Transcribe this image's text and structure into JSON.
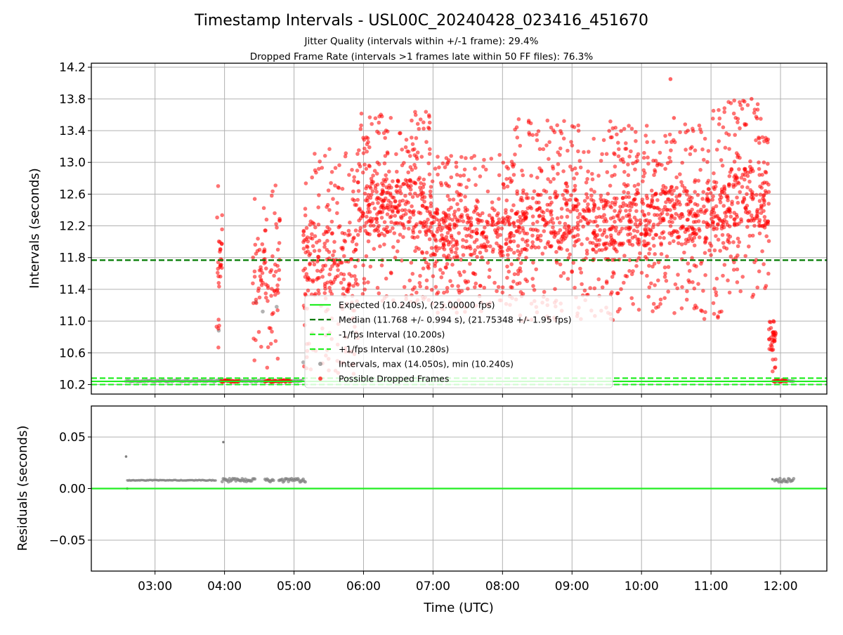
{
  "chart_data": [
    {
      "type": "scatter",
      "title": "Timestamp Intervals - USL00C_20240428_023416_451670",
      "subtitle": [
        "Jitter Quality (intervals within +/-1 frame): 29.4%",
        "Dropped Frame Rate (intervals >1 frames late within 50 FF files): 76.3%"
      ],
      "ylabel": "Intervals (seconds)",
      "xlabel": "",
      "xlim": [
        "02:05",
        "12:40"
      ],
      "ylim": [
        10.08,
        14.25
      ],
      "yticks": [
        "10.2",
        "10.6",
        "11.0",
        "11.4",
        "11.8",
        "12.2",
        "12.6",
        "13.0",
        "13.4",
        "13.8",
        "14.2"
      ],
      "grid": true,
      "legend_position": "lower-center",
      "lines": {
        "expected": 10.24,
        "median": 11.768,
        "minus_one_fps": 10.2,
        "plus_one_fps": 10.28
      },
      "legend": [
        {
          "label": "Expected (10.240s), (25.00000 fps)",
          "style": "solid",
          "color": "#22ee22"
        },
        {
          "label": "Median (11.768 +/- 0.994 s), (21.75348 +/- 1.95 fps)",
          "style": "dashed",
          "color": "#007a00"
        },
        {
          "label": "-1/fps Interval (10.200s)",
          "style": "dashed",
          "color": "#22ee22"
        },
        {
          "label": "+1/fps Interval (10.280s)",
          "style": "dashed",
          "color": "#22ee22"
        },
        {
          "label": "Intervals, max (14.050s), min (10.240s)",
          "style": "marker",
          "color": "#808080"
        },
        {
          "label": "Possible Dropped Frames",
          "style": "marker",
          "color": "#ff0000"
        }
      ],
      "series": [
        {
          "name": "Intervals, max (14.050s), min (10.240s)",
          "color": "#808080",
          "segments": [
            {
              "start": "02:35",
              "end": "05:08",
              "value": 10.245
            },
            {
              "start": "11:55",
              "end": "12:12",
              "value": 10.245
            }
          ],
          "points": [
            [
              "03:55",
              10.88
            ],
            [
              "04:27",
              11.24
            ],
            [
              "04:33",
              11.12
            ],
            [
              "04:45",
              11.18
            ],
            [
              "05:08",
              10.48
            ],
            [
              "03:57",
              10.27
            ]
          ]
        },
        {
          "name": "Possible Dropped Frames",
          "color": "#ff0000",
          "clusters": [
            {
              "start": "03:53",
              "end": "03:58",
              "min": 10.65,
              "max": 12.8,
              "count": 30
            },
            {
              "start": "04:24",
              "end": "04:48",
              "min": 10.4,
              "max": 12.75,
              "count": 90
            },
            {
              "start": "05:08",
              "end": "05:55",
              "min": 10.3,
              "max": 13.2,
              "count": 260
            },
            {
              "start": "05:55",
              "end": "07:00",
              "min": 11.2,
              "max": 13.65,
              "count": 430
            },
            {
              "start": "07:00",
              "end": "08:10",
              "min": 11.1,
              "max": 13.1,
              "count": 400
            },
            {
              "start": "08:10",
              "end": "09:40",
              "min": 11.0,
              "max": 13.55,
              "count": 520
            },
            {
              "start": "09:40",
              "end": "10:50",
              "min": 11.1,
              "max": 13.5,
              "count": 430
            },
            {
              "start": "10:50",
              "end": "11:15",
              "min": 11.0,
              "max": 13.7,
              "count": 150
            },
            {
              "start": "11:15",
              "end": "11:50",
              "min": 11.3,
              "max": 13.8,
              "count": 220
            },
            {
              "start": "11:50",
              "end": "11:56",
              "min": 10.35,
              "max": 11.15,
              "count": 35
            }
          ],
          "points": [
            [
              "10:25",
              14.05
            ],
            [
              "11:35",
              13.8
            ],
            [
              "10:28",
              13.56
            ],
            [
              "10:40",
              13.4
            ]
          ],
          "baseline_runs": [
            {
              "start": "03:57",
              "end": "04:13",
              "value": 10.245
            },
            {
              "start": "04:35",
              "end": "04:45",
              "value": 10.245
            },
            {
              "start": "04:47",
              "end": "04:57",
              "value": 10.245
            },
            {
              "start": "11:54",
              "end": "12:06",
              "value": 10.245
            }
          ]
        }
      ]
    },
    {
      "type": "scatter",
      "xlabel": "Time (UTC)",
      "ylabel": "Residuals (seconds)",
      "xlim": [
        "02:05",
        "12:40"
      ],
      "ylim": [
        -0.08,
        0.08
      ],
      "yticks": [
        "−0.05",
        "0.00",
        "0.05"
      ],
      "xticks": [
        "03:00",
        "04:00",
        "05:00",
        "06:00",
        "07:00",
        "08:00",
        "09:00",
        "10:00",
        "11:00",
        "12:00"
      ],
      "grid": true,
      "lines": {
        "zero": 0.0,
        "color": "#22ee22"
      },
      "series": [
        {
          "color": "#808080",
          "segments": [
            {
              "start": "02:36",
              "end": "03:53",
              "value": 0.008
            },
            {
              "start": "03:58",
              "end": "04:27",
              "value": 0.008
            },
            {
              "start": "04:35",
              "end": "04:43",
              "value": 0.008
            },
            {
              "start": "04:47",
              "end": "05:10",
              "value": 0.008
            },
            {
              "start": "11:55",
              "end": "12:12",
              "value": 0.008
            }
          ],
          "points": [
            [
              "02:35",
              0.031
            ],
            [
              "02:36",
              0.0
            ],
            [
              "03:59",
              0.045
            ],
            [
              "11:53",
              0.009
            ]
          ]
        }
      ]
    }
  ]
}
